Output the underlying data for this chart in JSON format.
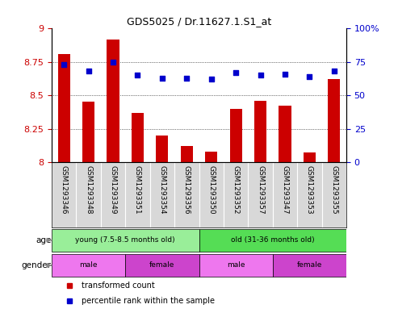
{
  "title": "GDS5025 / Dr.11627.1.S1_at",
  "samples": [
    "GSM1293346",
    "GSM1293348",
    "GSM1293349",
    "GSM1293351",
    "GSM1293354",
    "GSM1293356",
    "GSM1293350",
    "GSM1293352",
    "GSM1293357",
    "GSM1293347",
    "GSM1293353",
    "GSM1293355"
  ],
  "bar_values": [
    8.81,
    8.45,
    8.92,
    8.37,
    8.2,
    8.12,
    8.08,
    8.4,
    8.46,
    8.42,
    8.07,
    8.62
  ],
  "dot_values": [
    73,
    68,
    75,
    65,
    63,
    63,
    62,
    67,
    65,
    66,
    64,
    68
  ],
  "bar_color": "#cc0000",
  "dot_color": "#0000cc",
  "ylim_left": [
    8.0,
    9.0
  ],
  "ylim_right": [
    0,
    100
  ],
  "yticks_left": [
    8.0,
    8.25,
    8.5,
    8.75,
    9.0
  ],
  "ytick_labels_left": [
    "8",
    "8.25",
    "8.5",
    "8.75",
    "9"
  ],
  "yticks_right": [
    0,
    25,
    50,
    75,
    100
  ],
  "ytick_labels_right": [
    "0",
    "25",
    "50",
    "75",
    "100%"
  ],
  "sample_bg_color": "#d8d8d8",
  "age_colors": [
    "#99ee99",
    "#55dd55"
  ],
  "age_labels": [
    "young (7.5-8.5 months old)",
    "old (31-36 months old)"
  ],
  "age_starts": [
    0,
    6
  ],
  "age_ends": [
    6,
    12
  ],
  "gender_colors_alt": [
    "#dd66dd",
    "#cc44cc"
  ],
  "gender_labels": [
    "male",
    "female",
    "male",
    "female"
  ],
  "gender_starts": [
    0,
    3,
    6,
    9
  ],
  "gender_ends": [
    3,
    6,
    9,
    12
  ],
  "gender_color_male": "#ee77ee",
  "gender_color_female": "#cc44cc",
  "legend_items": [
    {
      "label": "transformed count",
      "color": "#cc0000"
    },
    {
      "label": "percentile rank within the sample",
      "color": "#0000cc"
    }
  ],
  "background_color": "#ffffff",
  "plot_bg": "#ffffff"
}
